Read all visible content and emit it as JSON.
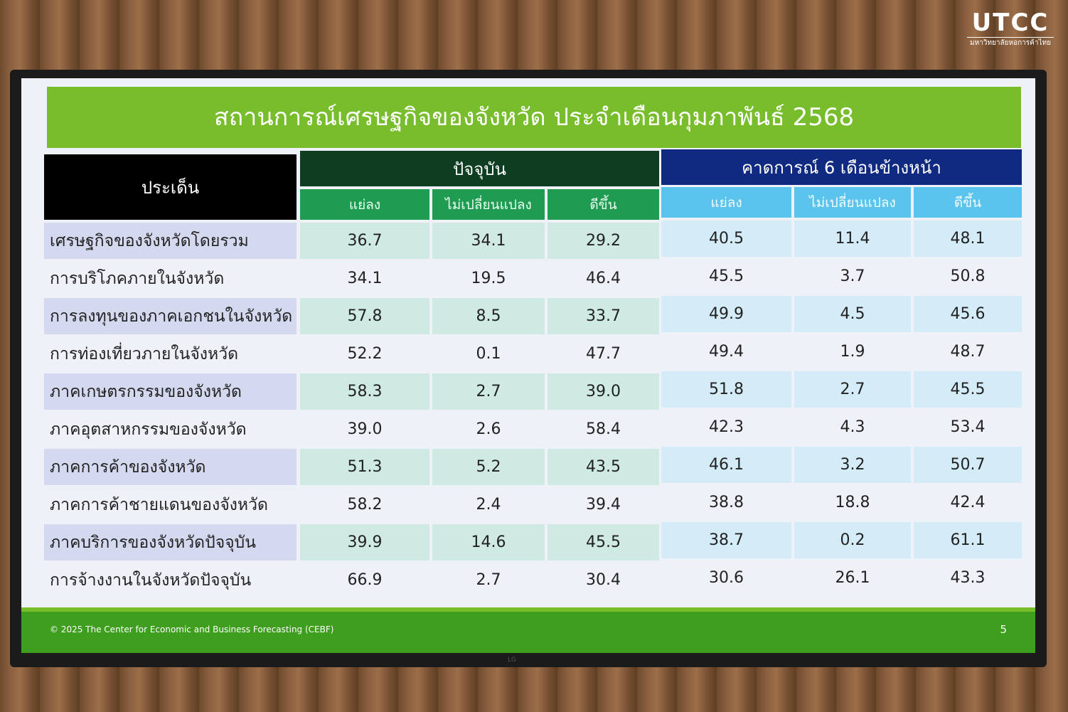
{
  "logo": {
    "main": "UTCC",
    "sub": "มหาวิทยาลัยหอการค้าไทย"
  },
  "slide": {
    "title": "สถานการณ์เศรษฐกิจของจังหวัด ประจำเดือนกุมภาพันธ์ 2568",
    "header_issue": "ประเด็น",
    "header_current": "ปัจจุบัน",
    "header_forecast": "คาดการณ์ 6 เดือนข้างหน้า",
    "subheaders": [
      "แย่ลง",
      "ไม่เปลี่ยนแปลง",
      "ดีขึ้น"
    ],
    "rows": [
      {
        "label": "เศรษฐกิจของจังหวัดโดยรวม",
        "current": [
          "36.7",
          "34.1",
          "29.2"
        ],
        "forecast": [
          "40.5",
          "11.4",
          "48.1"
        ]
      },
      {
        "label": "การบริโภคภายในจังหวัด",
        "current": [
          "34.1",
          "19.5",
          "46.4"
        ],
        "forecast": [
          "45.5",
          "3.7",
          "50.8"
        ]
      },
      {
        "label": "การลงทุนของภาคเอกชนในจังหวัด",
        "current": [
          "57.8",
          "8.5",
          "33.7"
        ],
        "forecast": [
          "49.9",
          "4.5",
          "45.6"
        ]
      },
      {
        "label": "การท่องเที่ยวภายในจังหวัด",
        "current": [
          "52.2",
          "0.1",
          "47.7"
        ],
        "forecast": [
          "49.4",
          "1.9",
          "48.7"
        ]
      },
      {
        "label": "ภาคเกษตรกรรมของจังหวัด",
        "current": [
          "58.3",
          "2.7",
          "39.0"
        ],
        "forecast": [
          "51.8",
          "2.7",
          "45.5"
        ]
      },
      {
        "label": "ภาคอุตสาหกรรมของจังหวัด",
        "current": [
          "39.0",
          "2.6",
          "58.4"
        ],
        "forecast": [
          "42.3",
          "4.3",
          "53.4"
        ]
      },
      {
        "label": "ภาคการค้าของจังหวัด",
        "current": [
          "51.3",
          "5.2",
          "43.5"
        ],
        "forecast": [
          "46.1",
          "3.2",
          "50.7"
        ]
      },
      {
        "label": "ภาคการค้าชายแดนของจังหวัด",
        "current": [
          "58.2",
          "2.4",
          "39.4"
        ],
        "forecast": [
          "38.8",
          "18.8",
          "42.4"
        ]
      },
      {
        "label": "ภาคบริการของจังหวัดปัจจุบัน",
        "current": [
          "39.9",
          "14.6",
          "45.5"
        ],
        "forecast": [
          "38.7",
          "0.2",
          "61.1"
        ]
      },
      {
        "label": "การจ้างงานในจังหวัดปัจจุบัน",
        "current": [
          "66.9",
          "2.7",
          "30.4"
        ],
        "forecast": [
          "30.6",
          "26.1",
          "43.3"
        ]
      }
    ],
    "footer": "© 2025 The Center for Economic and Business Forecasting (CEBF)",
    "page_number": "5"
  },
  "colors": {
    "title_green": "#77bd2c",
    "current_header": "#0e3d22",
    "current_sub": "#1f9c52",
    "forecast_header": "#0f2a80",
    "forecast_sub": "#5ac4ef",
    "footer_green": "#3e9e1e"
  }
}
